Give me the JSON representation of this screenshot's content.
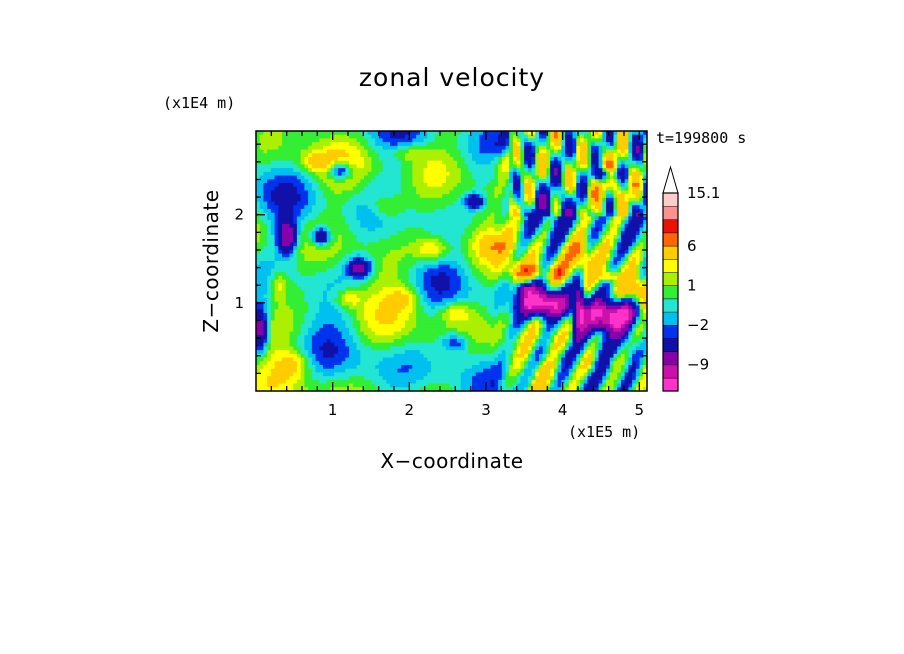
{
  "chart_data": {
    "type": "heatmap",
    "title": "zonal velocity",
    "xlabel": "X−coordinate",
    "ylabel": "Z−coordinate",
    "x_unit": "(x1E5 m)",
    "y_unit": "(x1E4 m)",
    "time_label": "t=199800 s",
    "xlim": [
      0,
      5.1
    ],
    "ylim": [
      0,
      2.95
    ],
    "xticks": [
      1,
      2,
      3,
      4,
      5
    ],
    "xtick_labels": [
      "1",
      "2",
      "3",
      "4",
      "5"
    ],
    "yticks": [
      1,
      2
    ],
    "ytick_labels": [
      "1",
      "2"
    ],
    "colorbar": {
      "levels": [
        -15,
        -12,
        -9,
        -6,
        -3,
        -2,
        -1,
        0,
        1,
        2,
        3,
        6,
        9,
        12,
        15.1
      ],
      "labels": [
        {
          "value": 15.1,
          "text": "15.1"
        },
        {
          "value": 6,
          "text": "6"
        },
        {
          "value": 1,
          "text": "1"
        },
        {
          "value": -2,
          "text": "−2"
        },
        {
          "value": -9,
          "text": "−9"
        }
      ],
      "colors": [
        "#ff33cc",
        "#cc11aa",
        "#8800aa",
        "#1111aa",
        "#0033ee",
        "#00c0f0",
        "#22e6d2",
        "#33ee33",
        "#aaf000",
        "#ffff00",
        "#ffcc00",
        "#ff6600",
        "#ee1100",
        "#ff9090",
        "#ffcccc"
      ],
      "extend": "max"
    }
  }
}
